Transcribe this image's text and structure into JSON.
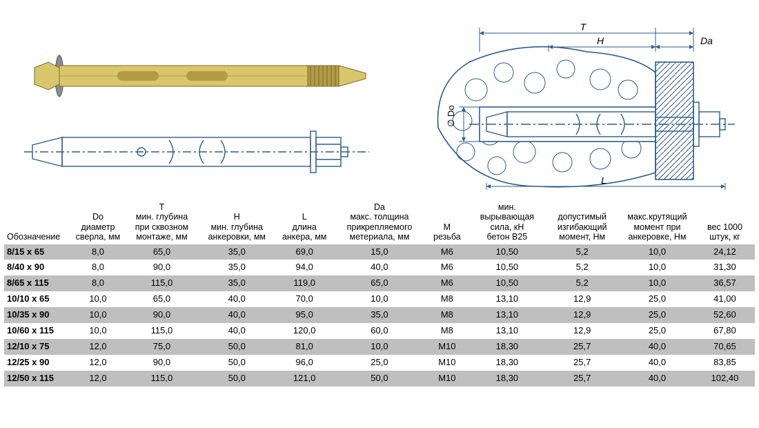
{
  "diagram": {
    "labels": {
      "T": "T",
      "H": "H",
      "Da": "Da",
      "Do": "∅ Do",
      "L": "L"
    },
    "colors": {
      "stroke": "#2b5b8c",
      "dim_stroke": "#2b5b8c",
      "metal_fill": "#d9c66a",
      "metal_shade": "#b29b45",
      "washer": "#8c8c8c",
      "concrete_stroke": "#2b5b8c",
      "hatch": "#2b5b8c",
      "band": "#bfbfbf"
    }
  },
  "table": {
    "columns": [
      {
        "key": "name",
        "header": "Обозначение",
        "width": "9%"
      },
      {
        "key": "Do",
        "header": "Do\nдиаметр\nсверла, мм",
        "width": "7%"
      },
      {
        "key": "T",
        "header": "T\nмин. глубина\nпри сквозном\nмонтаже, мм",
        "width": "10%"
      },
      {
        "key": "H",
        "header": "H\nмин. глубина\nанкеровки, мм",
        "width": "10%"
      },
      {
        "key": "L",
        "header": "L\nдлина\nанкера, мм",
        "width": "8%"
      },
      {
        "key": "Da",
        "header": "Da\nмакс. толщина\nприкрепляемого\nметериала, мм",
        "width": "12%"
      },
      {
        "key": "M",
        "header": "M\nрезьба",
        "width": "6%"
      },
      {
        "key": "F",
        "header": "мин.\nвырывающая\nсила, кН\nбетон B25",
        "width": "10%"
      },
      {
        "key": "bend",
        "header": "допустимый\nизгибающий\nмомент, Нм",
        "width": "10%"
      },
      {
        "key": "torq",
        "header": "макс.крутящий\nмомент при\nанкеровке, Нм",
        "width": "10%"
      },
      {
        "key": "wt",
        "header": "вес 1000\nштук, кг",
        "width": "8%"
      }
    ],
    "rows": [
      {
        "name": "8/15 x 65",
        "Do": "8,0",
        "T": "65,0",
        "H": "35,0",
        "L": "69,0",
        "Da": "15,0",
        "M": "M6",
        "F": "10,50",
        "bend": "5,2",
        "torq": "10,0",
        "wt": "24,12"
      },
      {
        "name": "8/40 x 90",
        "Do": "8,0",
        "T": "90,0",
        "H": "35,0",
        "L": "94,0",
        "Da": "40,0",
        "M": "M6",
        "F": "10,50",
        "bend": "5,2",
        "torq": "10,0",
        "wt": "31,30"
      },
      {
        "name": "8/65 x 115",
        "Do": "8,0",
        "T": "115,0",
        "H": "35,0",
        "L": "119,0",
        "Da": "65,0",
        "M": "M6",
        "F": "10,50",
        "bend": "5,2",
        "torq": "10,0",
        "wt": "36,57"
      },
      {
        "name": "10/10 x 65",
        "Do": "10,0",
        "T": "65,0",
        "H": "40,0",
        "L": "70,0",
        "Da": "10,0",
        "M": "M8",
        "F": "13,10",
        "bend": "12,9",
        "torq": "25,0",
        "wt": "41,00"
      },
      {
        "name": "10/35 x 90",
        "Do": "10,0",
        "T": "90,0",
        "H": "40,0",
        "L": "95,0",
        "Da": "35,0",
        "M": "M8",
        "F": "13,10",
        "bend": "12,9",
        "torq": "25,0",
        "wt": "52,60"
      },
      {
        "name": "10/60 x 115",
        "Do": "10,0",
        "T": "115,0",
        "H": "40,0",
        "L": "120,0",
        "Da": "60,0",
        "M": "M8",
        "F": "13,10",
        "bend": "12,9",
        "torq": "25,0",
        "wt": "67,80"
      },
      {
        "name": "12/10 x 75",
        "Do": "12,0",
        "T": "75,0",
        "H": "50,0",
        "L": "81,0",
        "Da": "10,0",
        "M": "M10",
        "F": "18,30",
        "bend": "25,7",
        "torq": "40,0",
        "wt": "70,65"
      },
      {
        "name": "12/25 x 90",
        "Do": "12,0",
        "T": "90,0",
        "H": "50,0",
        "L": "96,0",
        "Da": "25,0",
        "M": "M10",
        "F": "18,30",
        "bend": "25,7",
        "torq": "40,0",
        "wt": "83,85"
      },
      {
        "name": "12/50 x 115",
        "Do": "12,0",
        "T": "115,0",
        "H": "50,0",
        "L": "121,0",
        "Da": "50,0",
        "M": "M10",
        "F": "18,30",
        "bend": "25,7",
        "torq": "40,0",
        "wt": "102,40"
      }
    ]
  }
}
